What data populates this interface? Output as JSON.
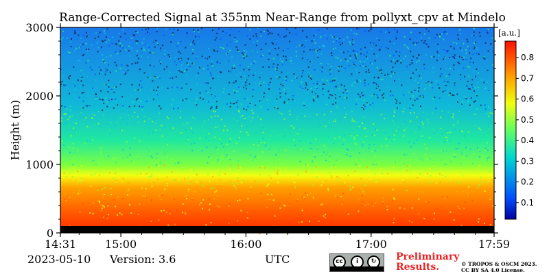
{
  "chart_data": {
    "type": "heatmap",
    "title": "Range-Corrected Signal at 355nm Near-Range from pollyxt_cpv at Mindelo",
    "ylabel": "Height (m)",
    "xlabel": "UTC",
    "x_range": [
      "14:31",
      "17:59"
    ],
    "x_ticks": [
      "14:31",
      "15:00",
      "16:00",
      "17:00",
      "17:59"
    ],
    "ylim": [
      0,
      3000
    ],
    "y_ticks": [
      0,
      1000,
      2000,
      3000
    ],
    "colorbar": {
      "label": "[a.u.]",
      "range": [
        0.02,
        0.88
      ],
      "ticks": [
        0.1,
        0.2,
        0.3,
        0.4,
        0.5,
        0.6,
        0.7,
        0.8
      ],
      "colormap": "jet"
    },
    "profile": [
      {
        "height_m": 0,
        "value": 0.0
      },
      {
        "height_m": 80,
        "value": 0.8
      },
      {
        "height_m": 300,
        "value": 0.78
      },
      {
        "height_m": 600,
        "value": 0.68
      },
      {
        "height_m": 850,
        "value": 0.54
      },
      {
        "height_m": 1000,
        "value": 0.4
      },
      {
        "height_m": 1500,
        "value": 0.3
      },
      {
        "height_m": 2000,
        "value": 0.24
      },
      {
        "height_m": 3000,
        "value": 0.2
      }
    ]
  },
  "footer": {
    "date": "2023-05-10",
    "version": "Version: 3.6",
    "preliminary_line1": "Preliminary",
    "preliminary_line2": "Results.",
    "copyright_line1": "© TROPOS & OSCM 2023.",
    "copyright_line2": "CC BY SA 4.0 License."
  },
  "license_badge": {
    "symbols": [
      "cc",
      "by",
      "sa"
    ],
    "strip_text": [
      "BY",
      "SA"
    ]
  },
  "colors": {
    "preliminary": "#e82424"
  }
}
